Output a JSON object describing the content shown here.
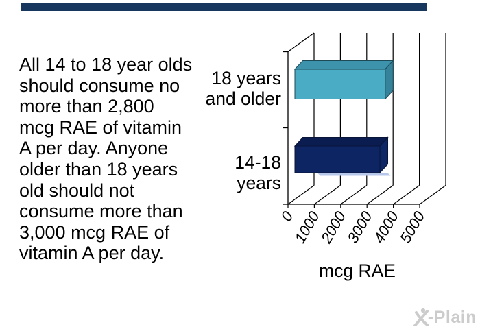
{
  "header": {
    "bar_color": "#17375E"
  },
  "body_text": {
    "lines": [
      "All 14 to 18 year olds",
      "should consume no",
      "more than 2,800",
      "mcg RAE of vitamin",
      "A per day. Anyone",
      "older than 18 years",
      "old should not",
      "consume more than",
      "3,000 mcg RAE of",
      "vitamin A per day."
    ]
  },
  "chart_data": {
    "type": "bar",
    "orientation": "horizontal",
    "projection": "3d",
    "categories": [
      "18 years and older",
      "14-18 years"
    ],
    "category_lines": [
      [
        "18 years",
        "and older"
      ],
      [
        "14-18",
        "years"
      ]
    ],
    "values": [
      3000,
      2800
    ],
    "xlabel": "mcg RAE",
    "xlim": [
      0,
      5000
    ],
    "xticks": [
      0,
      1000,
      2000,
      3000,
      4000,
      5000
    ],
    "xtick_labels": [
      "0",
      "1000",
      "2000",
      "3000",
      "4000",
      "5000"
    ],
    "grid": true,
    "gridline_color": "#000000",
    "axis_color": "#000000",
    "legend": false,
    "bar_styles": [
      {
        "front": "#4BACC6",
        "top": "#3E93AC",
        "side": "#35829B",
        "outline": "#1E4A57"
      },
      {
        "front": "#0E2563",
        "top": "#0A1C50",
        "side": "#0D2765",
        "outline": "#081538"
      }
    ],
    "underbar_highlight": "#B7C7EA"
  },
  "watermark": {
    "brand": "X-Plain",
    "wordmark": "-Plain",
    "color": "#CCCCCC"
  }
}
